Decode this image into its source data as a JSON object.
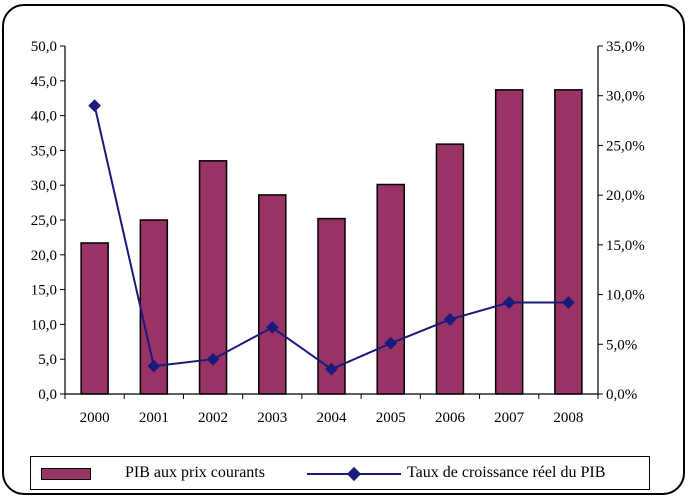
{
  "chart_data": {
    "type": "bar+line",
    "categories": [
      "2000",
      "2001",
      "2002",
      "2003",
      "2004",
      "2005",
      "2006",
      "2007",
      "2008"
    ],
    "series": [
      {
        "name": "PIB aux prix courants",
        "type": "bar",
        "axis": "left",
        "values": [
          21.7,
          25.0,
          33.5,
          28.6,
          25.2,
          30.1,
          35.9,
          43.7,
          43.7
        ]
      },
      {
        "name": "Taux de croissance réel du PIB",
        "type": "line",
        "axis": "right",
        "values": [
          29.0,
          2.8,
          3.5,
          6.7,
          2.5,
          5.1,
          7.5,
          9.2,
          9.2
        ]
      }
    ],
    "y_left": {
      "ylim": [
        0,
        50
      ],
      "ticks": [
        "0,0",
        "5,0",
        "10,0",
        "15,0",
        "20,0",
        "25,0",
        "30,0",
        "35,0",
        "40,0",
        "45,0",
        "50,0"
      ]
    },
    "y_right": {
      "ylim": [
        0,
        35
      ],
      "ticks": [
        "0,0%",
        "5,0%",
        "10,0%",
        "15,0%",
        "20,0%",
        "25,0%",
        "30,0%",
        "35,0%"
      ]
    },
    "legend_position": "bottom",
    "grid": false,
    "colors": {
      "bar": "#993366",
      "line": "#1a1a7a"
    }
  }
}
